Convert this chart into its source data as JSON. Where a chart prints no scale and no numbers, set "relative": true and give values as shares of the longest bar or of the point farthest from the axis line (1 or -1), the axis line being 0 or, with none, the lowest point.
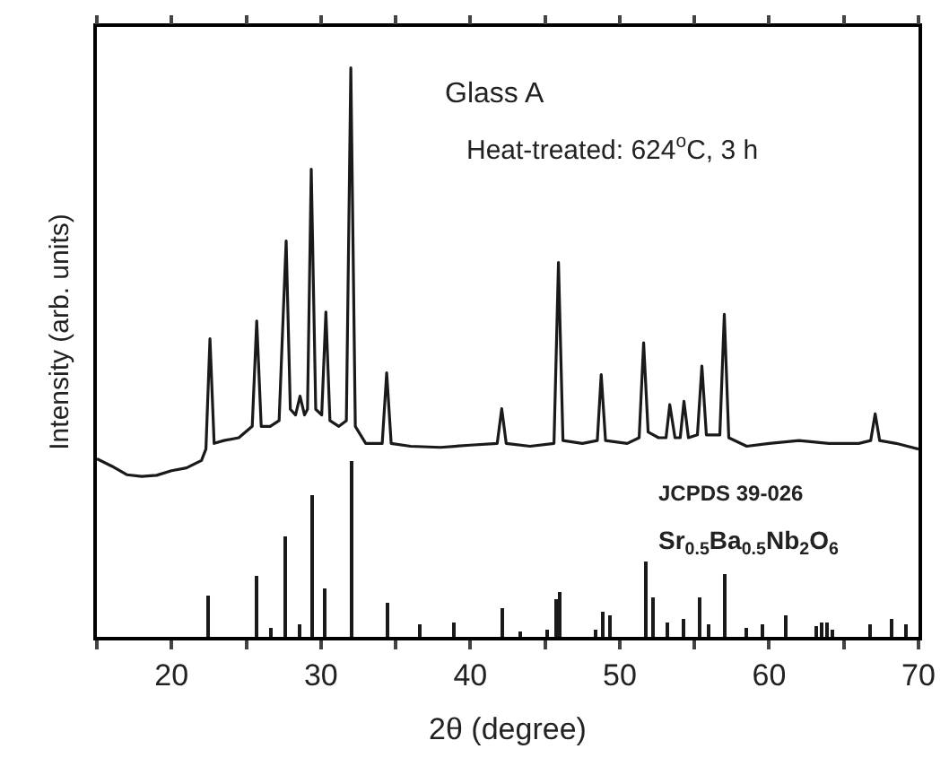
{
  "chart_data": {
    "type": "line",
    "relative": true,
    "xlabel": "2θ (degree)",
    "ylabel": "Intensity (arb. units)",
    "xlim": [
      15,
      70
    ],
    "xticks": [
      {
        "value": 15,
        "label": null
      },
      20,
      {
        "value": 25,
        "label": null
      },
      30,
      {
        "value": 35,
        "label": null
      },
      40,
      {
        "value": 45,
        "label": null
      },
      50,
      {
        "value": 55,
        "label": null
      },
      60,
      {
        "value": 65,
        "label": null
      },
      70
    ],
    "tick_labels": "x",
    "marker": "none",
    "line_style": "solid",
    "annotations": [
      "Glass A",
      "Heat-treated: 624$^{o}$C, 3 h",
      "JCPDS 39-026",
      "Sr$_{0.5}$Ba$_{0.5}$Nb$_{2}$O$_{6}$"
    ],
    "series": [
      {
        "color": "#1a1a1a",
        "x": [
          15,
          16,
          17,
          18,
          19,
          20,
          21,
          22,
          22.3,
          22.57,
          22.85,
          23.5,
          24.5,
          25.4,
          25.7,
          26.0,
          26.6,
          27.2,
          27.4,
          27.67,
          27.95,
          28.3,
          28.6,
          28.9,
          29.1,
          29.35,
          29.65,
          30.05,
          30.33,
          30.6,
          31.2,
          31.7,
          32.0,
          32.3,
          33.0,
          34.1,
          34.4,
          34.7,
          36,
          38,
          40,
          41.8,
          42.1,
          42.4,
          44,
          45.6,
          45.9,
          46.2,
          47.5,
          48.5,
          48.76,
          49.05,
          50.5,
          51.3,
          51.6,
          51.9,
          52.6,
          53.1,
          53.35,
          53.7,
          54.05,
          54.3,
          54.6,
          55.2,
          55.5,
          55.8,
          56.7,
          57.0,
          57.3,
          58.5,
          60,
          62,
          64,
          66,
          66.8,
          67.1,
          67.4,
          68.5,
          70
        ],
        "values": [
          0.313,
          0.3,
          0.285,
          0.282,
          0.284,
          0.292,
          0.297,
          0.31,
          0.33,
          0.524,
          0.34,
          0.345,
          0.35,
          0.37,
          0.555,
          0.37,
          0.37,
          0.38,
          0.517,
          0.696,
          0.4,
          0.39,
          0.423,
          0.39,
          0.4,
          0.822,
          0.4,
          0.39,
          0.571,
          0.38,
          0.37,
          0.38,
          1.0,
          0.37,
          0.34,
          0.34,
          0.464,
          0.34,
          0.335,
          0.333,
          0.337,
          0.34,
          0.401,
          0.34,
          0.335,
          0.34,
          0.658,
          0.345,
          0.34,
          0.345,
          0.461,
          0.345,
          0.34,
          0.35,
          0.517,
          0.36,
          0.35,
          0.35,
          0.408,
          0.35,
          0.35,
          0.414,
          0.35,
          0.355,
          0.476,
          0.355,
          0.355,
          0.567,
          0.35,
          0.335,
          0.34,
          0.345,
          0.34,
          0.34,
          0.345,
          0.392,
          0.345,
          0.34,
          0.33
        ]
      },
      {
        "type": "bar",
        "color": "#1a1a1a",
        "x": [
          22.5,
          25.7,
          26.7,
          27.6,
          28.6,
          29.4,
          30.3,
          32.0,
          34.4,
          36.65,
          38.85,
          42.2,
          43.4,
          45.2,
          45.75,
          45.95,
          48.4,
          48.85,
          49.4,
          51.7,
          52.2,
          53.25,
          54.3,
          55.3,
          55.95,
          57.0,
          58.5,
          59.55,
          61.1,
          63.1,
          63.55,
          63.85,
          64.2,
          66.75,
          68.25,
          69.15
        ],
        "values": [
          0.071,
          0.107,
          0.016,
          0.178,
          0.021,
          0.248,
          0.084,
          0.308,
          0.06,
          0.021,
          0.026,
          0.05,
          0.01,
          0.013,
          0.066,
          0.08,
          0.013,
          0.045,
          0.037,
          0.134,
          0.07,
          0.026,
          0.033,
          0.07,
          0.023,
          0.11,
          0.016,
          0.023,
          0.037,
          0.02,
          0.026,
          0.026,
          0.014,
          0.023,
          0.033,
          0.023
        ]
      }
    ]
  }
}
